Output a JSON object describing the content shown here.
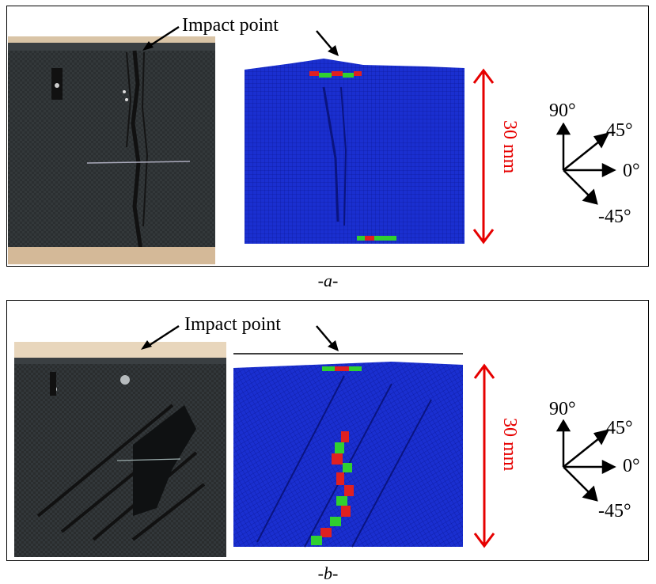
{
  "panel_a": {
    "caption": "-a-",
    "impact_label": "Impact point",
    "dimension_label": "30 mm",
    "orientation": {
      "deg90": "90°",
      "deg45": "45°",
      "deg0": "0°",
      "degm45": "-45°"
    }
  },
  "panel_b": {
    "caption": "-b-",
    "impact_label": "Impact point",
    "dimension_label": "30 mm",
    "orientation": {
      "deg90": "90°",
      "deg45": "45°",
      "deg0": "0°",
      "degm45": "-45°"
    }
  },
  "colors": {
    "fe_mesh_blue": "#1a2fd0",
    "damage_red": "#e02020",
    "damage_green": "#30d030",
    "dimension_arrow": "#e60000",
    "specimen_black": "#2a2d2e",
    "table_wood": "#d8c2a4"
  }
}
